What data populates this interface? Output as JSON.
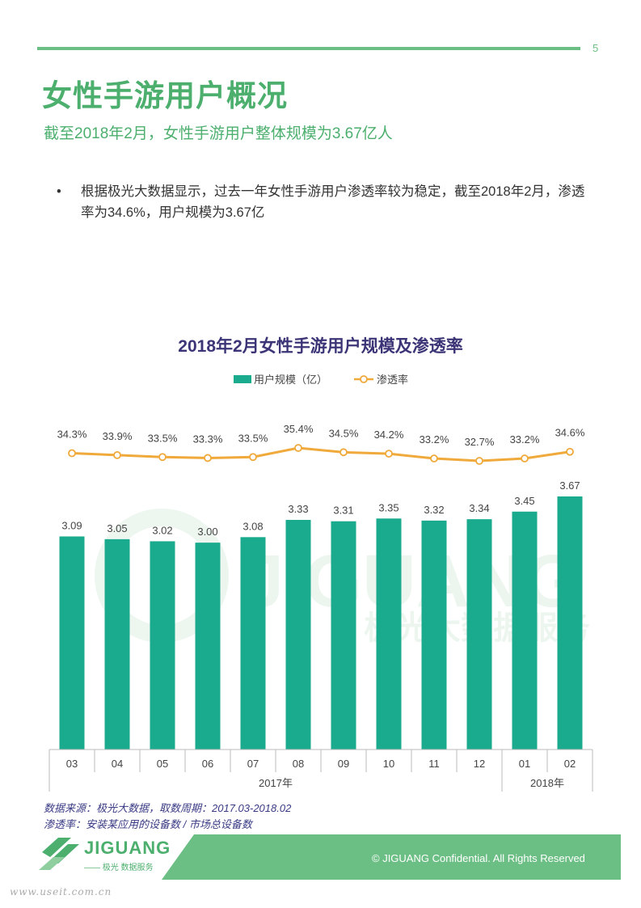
{
  "page": {
    "number": "5",
    "title": "女性手游用户概况",
    "subtitle": "截至2018年2月，女性手游用户整体规模为3.67亿人",
    "bullet_marker": "•",
    "bullet_text": "根据极光大数据显示，过去一年女性手游用户渗透率较为稳定，截至2018年2月，渗透率为34.6%，用户规模为3.67亿"
  },
  "chart_data": {
    "type": "bar",
    "title": "2018年2月女性手游用户规模及渗透率",
    "categories": [
      "03",
      "04",
      "05",
      "06",
      "07",
      "08",
      "09",
      "10",
      "11",
      "12",
      "01",
      "02"
    ],
    "year_groups": [
      {
        "label": "2017年",
        "from": 0,
        "to": 9
      },
      {
        "label": "2018年",
        "from": 10,
        "to": 11
      }
    ],
    "series": [
      {
        "name": "用户规模（亿）",
        "kind": "bar",
        "color": "#1aab8e",
        "values": [
          3.09,
          3.05,
          3.02,
          3.0,
          3.08,
          3.33,
          3.31,
          3.35,
          3.32,
          3.34,
          3.45,
          3.67
        ],
        "labels": [
          "3.09",
          "3.05",
          "3.02",
          "3.00",
          "3.08",
          "3.33",
          "3.31",
          "3.35",
          "3.32",
          "3.34",
          "3.45",
          "3.67"
        ]
      },
      {
        "name": "渗透率",
        "kind": "line",
        "color": "#f0a93b",
        "values": [
          34.3,
          33.9,
          33.5,
          33.3,
          33.5,
          35.4,
          34.5,
          34.2,
          33.2,
          32.7,
          33.2,
          34.6
        ],
        "labels": [
          "34.3%",
          "33.9%",
          "33.5%",
          "33.3%",
          "33.5%",
          "35.4%",
          "34.5%",
          "34.2%",
          "33.2%",
          "32.7%",
          "33.2%",
          "34.6%"
        ]
      }
    ],
    "ylim_bar": [
      0,
      3.67
    ],
    "ylim_line": [
      30,
      36
    ],
    "legend_position": "top-center",
    "watermark_text": "JIGUANG",
    "watermark_sub": "极光大数据服务"
  },
  "source": {
    "line1": "数据来源：极光大数据，取数周期：2017.03-2018.02",
    "line2": "渗透率：安装某应用的设备数 / 市场总设备数"
  },
  "footer": {
    "logo_text": "JIGUANG",
    "logo_sub": "—— 极光 数据服务",
    "copyright": "© JIGUANG Confidential. All Rights Reserved",
    "site": "www.useit.com.cn"
  },
  "colors": {
    "brand_green": "#4caf6e",
    "bar_teal": "#1aab8e",
    "line_orange": "#f0a93b",
    "title_purple": "#3b3577"
  }
}
